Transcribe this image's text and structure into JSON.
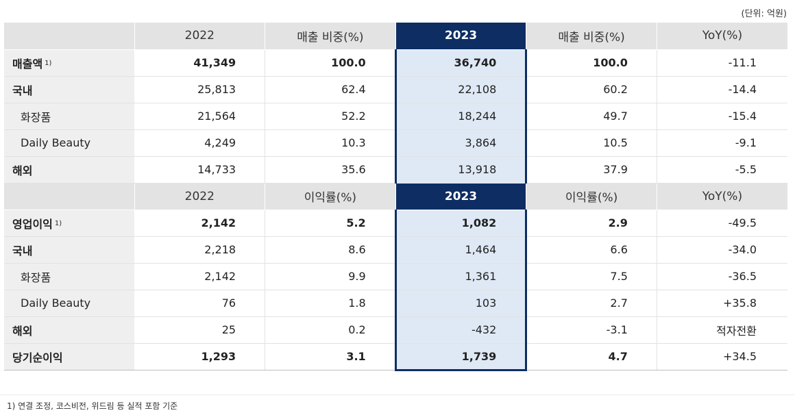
{
  "unit_note": "(단위: 억원)",
  "sales_header": [
    "",
    "2022",
    "매출 비중(%)",
    "2023",
    "매출 비중(%)",
    "YoY(%)"
  ],
  "sales_rows": [
    {
      "label": "매출액",
      "note": "1)",
      "bold": true,
      "indent": false,
      "cells": [
        "41,349",
        "100.0",
        "36,740",
        "100.0",
        "-11.1"
      ]
    },
    {
      "label": "국내",
      "note": "",
      "bold": true,
      "indent": false,
      "cells": [
        "25,813",
        "62.4",
        "22,108",
        "60.2",
        "-14.4"
      ]
    },
    {
      "label": "화장품",
      "note": "",
      "bold": false,
      "indent": true,
      "cells": [
        "21,564",
        "52.2",
        "18,244",
        "49.7",
        "-15.4"
      ]
    },
    {
      "label": "Daily Beauty",
      "note": "",
      "bold": false,
      "indent": true,
      "cells": [
        "4,249",
        "10.3",
        "3,864",
        "10.5",
        "-9.1"
      ]
    },
    {
      "label": "해외",
      "note": "",
      "bold": true,
      "indent": false,
      "cells": [
        "14,733",
        "35.6",
        "13,918",
        "37.9",
        "-5.5"
      ]
    }
  ],
  "profit_header": [
    "",
    "2022",
    "이익률(%)",
    "2023",
    "이익률(%)",
    "YoY(%)"
  ],
  "profit_rows": [
    {
      "label": "영업이익",
      "note": "1)",
      "bold": true,
      "indent": false,
      "cells": [
        "2,142",
        "5.2",
        "1,082",
        "2.9",
        "-49.5"
      ]
    },
    {
      "label": "국내",
      "note": "",
      "bold": true,
      "indent": false,
      "cells": [
        "2,218",
        "8.6",
        "1,464",
        "6.6",
        "-34.0"
      ]
    },
    {
      "label": "화장품",
      "note": "",
      "bold": false,
      "indent": true,
      "cells": [
        "2,142",
        "9.9",
        "1,361",
        "7.5",
        "-36.5"
      ]
    },
    {
      "label": "Daily Beauty",
      "note": "",
      "bold": false,
      "indent": true,
      "cells": [
        "76",
        "1.8",
        "103",
        "2.7",
        "+35.8"
      ]
    },
    {
      "label": "해외",
      "note": "",
      "bold": true,
      "indent": false,
      "cells": [
        "25",
        "0.2",
        "-432",
        "-3.1",
        "적자전환"
      ]
    },
    {
      "label": "당기순이익",
      "note": "",
      "bold": true,
      "indent": false,
      "cells": [
        "1,293",
        "3.1",
        "1,739",
        "4.7",
        "+34.5"
      ]
    }
  ],
  "footnote": "1) 연결 조정, 코스비전, 위드림 등 실적 포함 기준",
  "colors": {
    "highlight_header": "#0d2d63",
    "highlight_fill": "#dfe9f5",
    "header_gray": "#e3e3e3",
    "label_gray": "#efefef"
  }
}
